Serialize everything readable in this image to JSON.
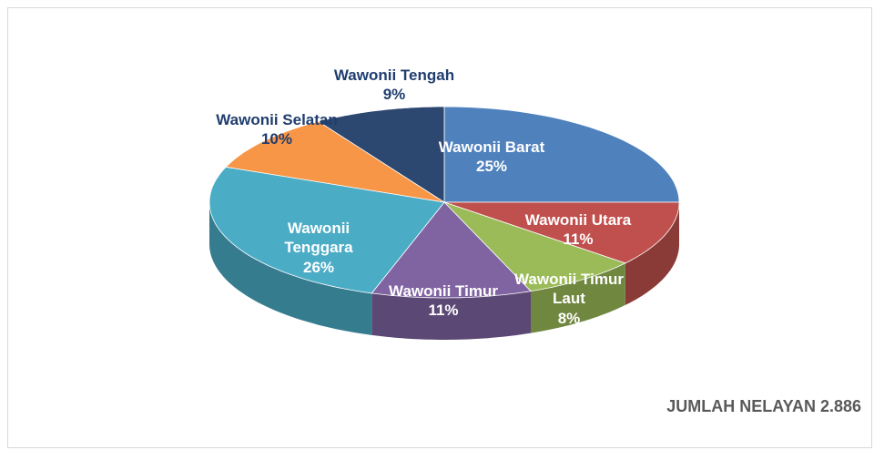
{
  "chart_data": {
    "type": "pie3d",
    "categories": [
      "Wawonii Barat",
      "Wawonii Utara",
      "Wawonii Timur Laut",
      "Wawonii Timur",
      "Wawonii Tenggara",
      "Wawonii Selatan",
      "Wawonii Tengah"
    ],
    "values": [
      25,
      11,
      8,
      11,
      26,
      10,
      9
    ],
    "value_labels": [
      "25%",
      "11%",
      "8%",
      "11%",
      "26%",
      "10%",
      "9%"
    ],
    "colors": [
      "#4f81bd",
      "#c0504d",
      "#9bbb59",
      "#8064a2",
      "#4bacc6",
      "#f79646",
      "#2c4770"
    ],
    "annotation": "JUMLAH NELAYAN 2.886"
  }
}
